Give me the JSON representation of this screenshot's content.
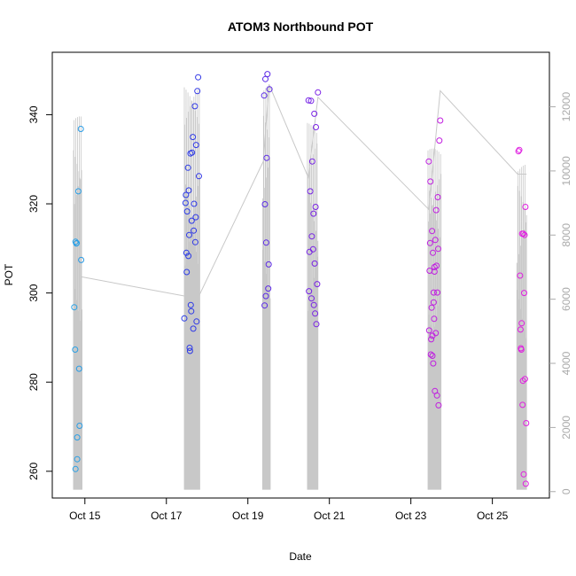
{
  "chart_data": {
    "type": "scatter",
    "title": "ATOM3 Northbound POT",
    "xlabel": "Date",
    "ylabel": "POT",
    "x_unit": "day of October",
    "xlim": [
      14.2,
      26.4
    ],
    "ylim": [
      254,
      354
    ],
    "x_ticks": [
      {
        "value": 15,
        "label": "Oct 15"
      },
      {
        "value": 17,
        "label": "Oct 17"
      },
      {
        "value": 19,
        "label": "Oct 19"
      },
      {
        "value": 21,
        "label": "Oct 21"
      },
      {
        "value": 23,
        "label": "Oct 23"
      },
      {
        "value": 25,
        "label": "Oct 25"
      }
    ],
    "y_ticks": [
      260,
      280,
      300,
      320,
      340
    ],
    "y2_lim": [
      -200,
      13700
    ],
    "y2_ticks": [
      0,
      2000,
      4000,
      6000,
      8000,
      10000,
      12000
    ],
    "grid": false,
    "color_scale": [
      "#29a3e6",
      "#2b3be6",
      "#6f22e6",
      "#b81ee0",
      "#e21ee0"
    ],
    "series": [
      {
        "values": [
          [
            14.74,
            296.8
          ],
          [
            14.76,
            287.3
          ],
          [
            14.77,
            260.5
          ],
          [
            14.77,
            311.5
          ],
          [
            14.79,
            311.1
          ],
          [
            14.8,
            311.2
          ],
          [
            14.81,
            262.7
          ],
          [
            14.81,
            267.6
          ],
          [
            14.84,
            322.8
          ],
          [
            14.86,
            283.0
          ],
          [
            14.87,
            270.2
          ],
          [
            14.9,
            336.8
          ],
          [
            14.91,
            307.4
          ]
        ]
      },
      {
        "values": [
          [
            17.44,
            294.3
          ],
          [
            17.47,
            320.2
          ],
          [
            17.48,
            322.0
          ],
          [
            17.49,
            309.0
          ],
          [
            17.5,
            304.7
          ],
          [
            17.51,
            318.3
          ],
          [
            17.53,
            328.1
          ],
          [
            17.54,
            308.3
          ],
          [
            17.55,
            323.0
          ],
          [
            17.56,
            313.0
          ],
          [
            17.57,
            287.7
          ],
          [
            17.58,
            287.0
          ],
          [
            17.59,
            331.3
          ],
          [
            17.6,
            297.3
          ],
          [
            17.61,
            295.9
          ],
          [
            17.62,
            316.2
          ],
          [
            17.63,
            331.5
          ],
          [
            17.65,
            335.0
          ],
          [
            17.66,
            292.0
          ],
          [
            17.67,
            314.0
          ],
          [
            17.68,
            320.0
          ],
          [
            17.7,
            341.9
          ],
          [
            17.71,
            311.4
          ],
          [
            17.72,
            317.0
          ],
          [
            17.73,
            333.2
          ],
          [
            17.74,
            293.6
          ],
          [
            17.76,
            345.3
          ],
          [
            17.78,
            348.4
          ],
          [
            17.8,
            326.2
          ]
        ]
      },
      {
        "values": [
          [
            19.4,
            344.3
          ],
          [
            19.41,
            297.2
          ],
          [
            19.42,
            319.9
          ],
          [
            19.43,
            348.0
          ],
          [
            19.44,
            299.3
          ],
          [
            19.45,
            311.3
          ],
          [
            19.46,
            330.3
          ],
          [
            19.48,
            349.1
          ],
          [
            19.5,
            301.0
          ],
          [
            19.51,
            306.4
          ],
          [
            19.53,
            345.7
          ]
        ]
      },
      {
        "values": [
          [
            20.49,
            343.2
          ],
          [
            20.5,
            300.4
          ],
          [
            20.51,
            309.2
          ],
          [
            20.53,
            322.8
          ],
          [
            20.55,
            343.1
          ],
          [
            20.56,
            298.8
          ],
          [
            20.57,
            312.7
          ],
          [
            20.58,
            329.5
          ],
          [
            20.6,
            309.8
          ],
          [
            20.61,
            317.8
          ],
          [
            20.62,
            297.3
          ],
          [
            20.63,
            340.2
          ],
          [
            20.64,
            306.6
          ],
          [
            20.65,
            295.4
          ],
          [
            20.66,
            319.3
          ],
          [
            20.67,
            337.2
          ],
          [
            20.68,
            293.0
          ],
          [
            20.7,
            302.0
          ],
          [
            20.72,
            345.0
          ]
        ]
      },
      {
        "values": [
          [
            23.44,
            329.5
          ],
          [
            23.45,
            291.6
          ],
          [
            23.46,
            305.0
          ],
          [
            23.47,
            311.2
          ],
          [
            23.48,
            325.0
          ],
          [
            23.49,
            286.2
          ],
          [
            23.5,
            289.6
          ],
          [
            23.51,
            296.7
          ],
          [
            23.52,
            313.9
          ],
          [
            23.53,
            290.4
          ],
          [
            23.54,
            309.0
          ],
          [
            23.55,
            284.2
          ],
          [
            23.56,
            300.1
          ],
          [
            23.57,
            294.2
          ],
          [
            23.58,
            304.8
          ],
          [
            23.59,
            278.0
          ],
          [
            23.6,
            311.9
          ],
          [
            23.61,
            291.0
          ],
          [
            23.62,
            318.6
          ],
          [
            23.63,
            306.1
          ],
          [
            23.64,
            277.0
          ],
          [
            23.65,
            300.1
          ],
          [
            23.66,
            321.5
          ],
          [
            23.67,
            309.9
          ],
          [
            23.68,
            274.8
          ],
          [
            23.7,
            334.2
          ],
          [
            23.72,
            338.7
          ],
          [
            23.53,
            285.9
          ],
          [
            23.58,
            305.8
          ],
          [
            23.56,
            297.9
          ]
        ]
      },
      {
        "values": [
          [
            25.64,
            331.8
          ],
          [
            25.66,
            332.1
          ],
          [
            25.68,
            303.9
          ],
          [
            25.69,
            291.8
          ],
          [
            25.7,
            287.6
          ],
          [
            25.71,
            287.3
          ],
          [
            25.72,
            293.2
          ],
          [
            25.73,
            313.3
          ],
          [
            25.74,
            274.9
          ],
          [
            25.75,
            280.3
          ],
          [
            25.76,
            313.3
          ],
          [
            25.77,
            259.3
          ],
          [
            25.78,
            300.0
          ],
          [
            25.79,
            313.0
          ],
          [
            25.8,
            280.7
          ],
          [
            25.81,
            319.3
          ],
          [
            25.82,
            257.2
          ],
          [
            25.83,
            270.8
          ]
        ]
      }
    ],
    "line": {
      "color": "#c8c8c8",
      "axis": "right",
      "trend": [
        [
          14.9,
          6700
        ],
        [
          17.44,
          6100
        ],
        [
          17.8,
          6100
        ],
        [
          19.38,
          10300
        ],
        [
          19.52,
          12700
        ],
        [
          20.48,
          9800
        ],
        [
          20.72,
          12300
        ],
        [
          23.44,
          8800
        ],
        [
          23.72,
          12500
        ],
        [
          25.62,
          9900
        ],
        [
          25.84,
          9900
        ]
      ],
      "spikes": [
        {
          "x0": 14.72,
          "x1": 14.93,
          "low": 60,
          "high": 11700
        },
        {
          "x0": 17.44,
          "x1": 17.82,
          "low": 60,
          "high": 12700
        },
        {
          "x0": 19.36,
          "x1": 19.55,
          "low": 60,
          "high": 12700
        },
        {
          "x0": 20.46,
          "x1": 20.72,
          "low": 60,
          "high": 11500
        },
        {
          "x0": 23.42,
          "x1": 23.74,
          "low": 60,
          "high": 10700
        },
        {
          "x0": 25.6,
          "x1": 25.84,
          "low": 60,
          "high": 10200
        }
      ]
    }
  }
}
